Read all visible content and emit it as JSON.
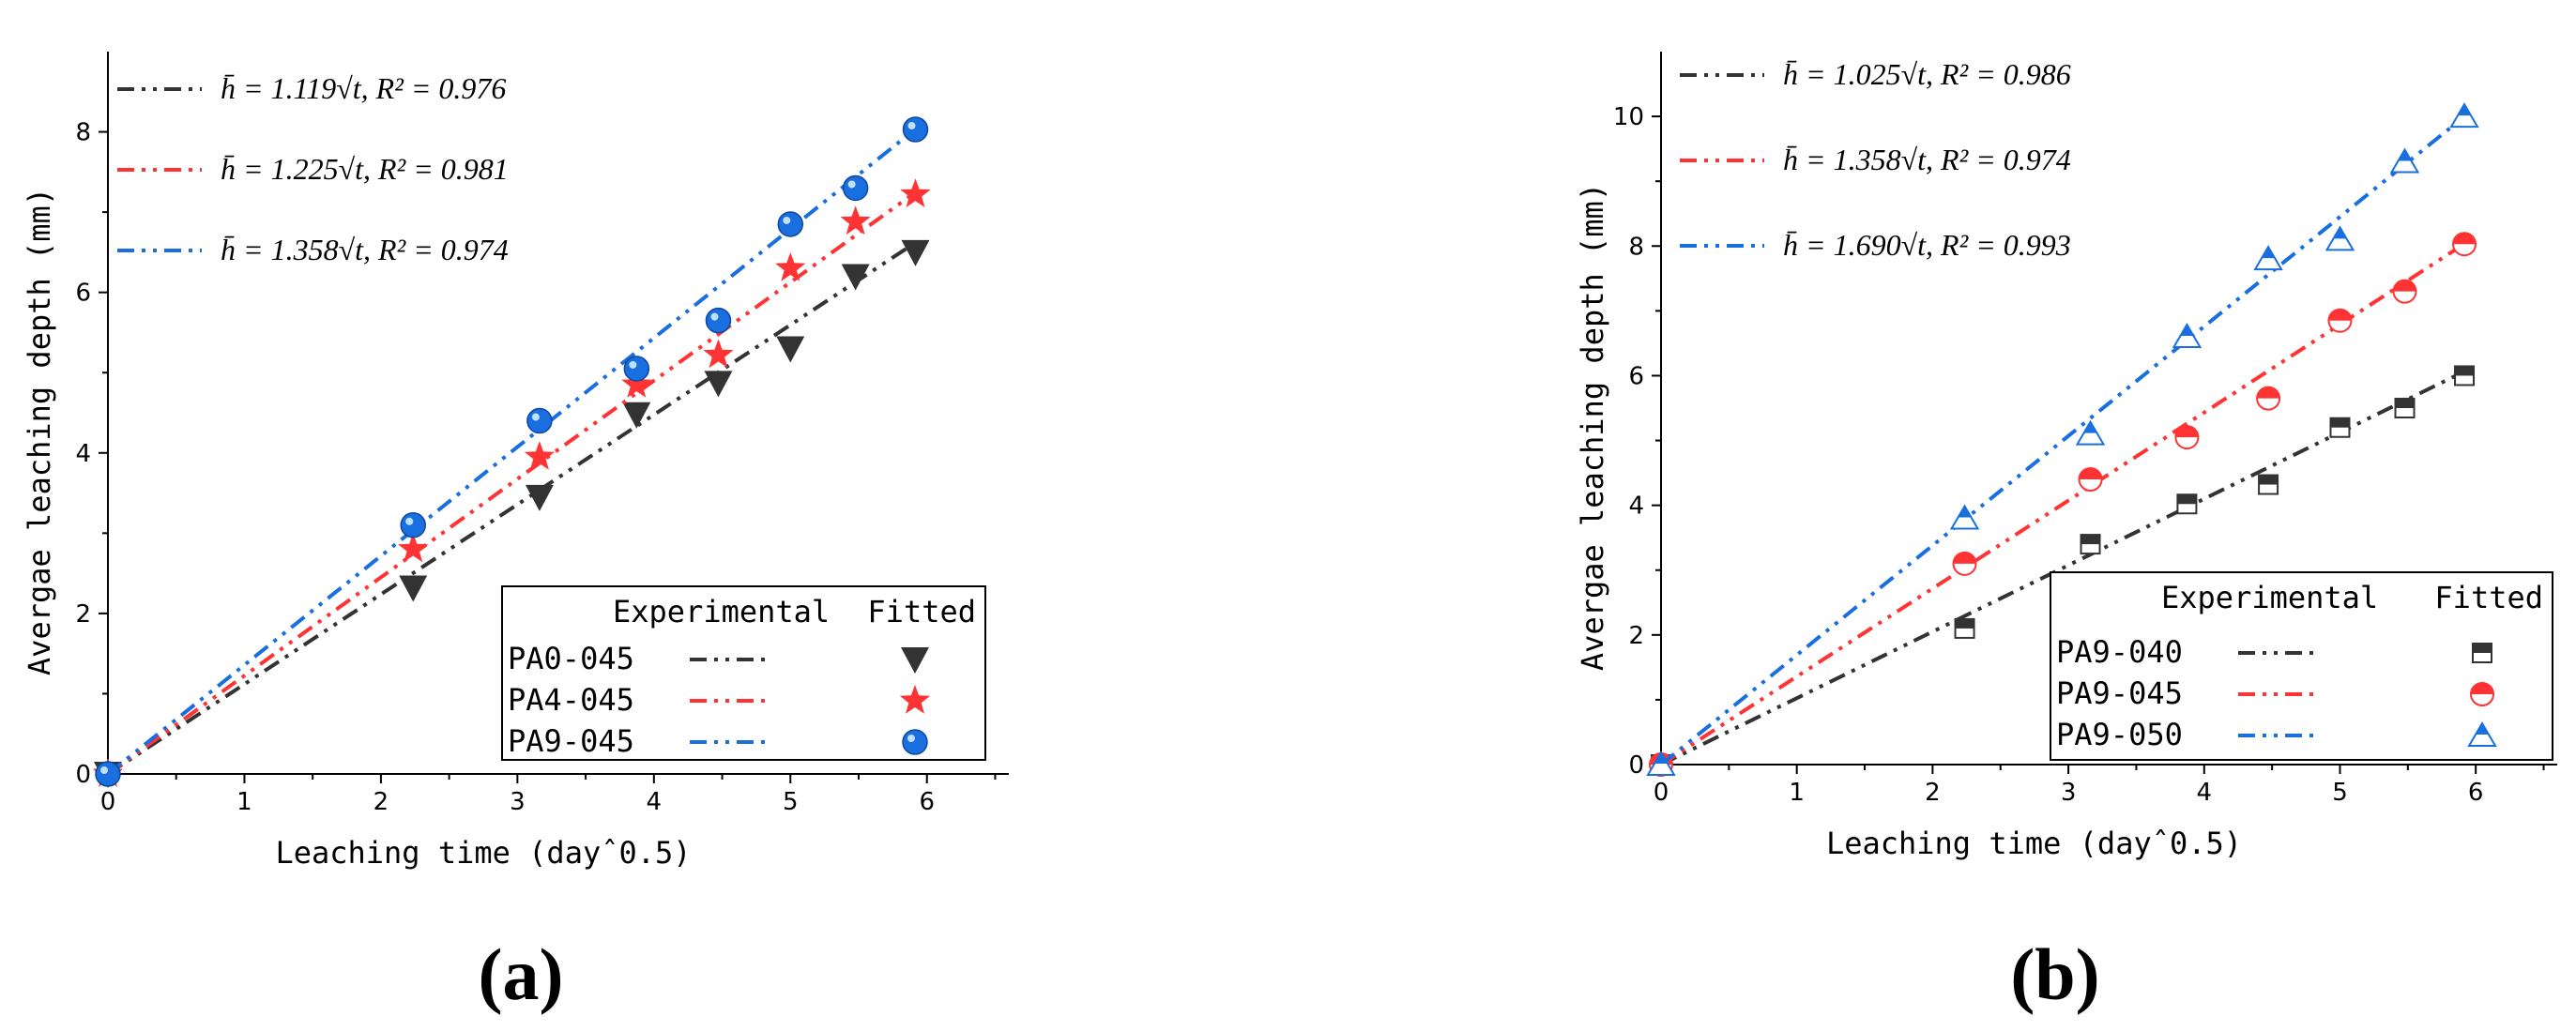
{
  "chart_data": [
    {
      "type": "scatter",
      "panel_label": "(a)",
      "xlabel": "Leaching time (dayˆ0.5)",
      "ylabel": "Avergae leaching depth (mm)",
      "xlim": [
        0,
        6.6
      ],
      "ylim": [
        0,
        9
      ],
      "xticks": [
        0,
        1,
        2,
        3,
        4,
        5,
        6
      ],
      "yticks": [
        0,
        2,
        4,
        6,
        8
      ],
      "legend_header": {
        "experimental": "Experimental",
        "fitted": "Fitted"
      },
      "series": [
        {
          "name": "PA0-045",
          "color": "#333333",
          "marker": "triangle-down",
          "slope": 1.119,
          "equation": "h̄ = 1.119√t,  R² = 0.976",
          "x": [
            0,
            2.236,
            3.162,
            3.873,
            4.472,
            5.0,
            5.477,
            5.916
          ],
          "y": [
            0,
            2.32,
            3.45,
            4.48,
            4.87,
            5.3,
            6.2,
            6.5
          ]
        },
        {
          "name": "PA4-045",
          "color": "#ff3333",
          "marker": "star",
          "slope": 1.225,
          "equation": "h̄ = 1.225√t,  R² = 0.981",
          "x": [
            0,
            2.236,
            3.162,
            3.873,
            4.472,
            5.0,
            5.477,
            5.916
          ],
          "y": [
            0,
            2.8,
            3.95,
            4.85,
            5.22,
            6.3,
            6.88,
            7.22
          ]
        },
        {
          "name": "PA9-045",
          "color": "#1a6fe0",
          "marker": "sphere",
          "slope": 1.358,
          "equation": "h̄ = 1.358√t,  R² = 0.974",
          "x": [
            0,
            2.236,
            3.162,
            3.873,
            4.472,
            5.0,
            5.477,
            5.916
          ],
          "y": [
            0,
            3.1,
            4.4,
            5.05,
            5.65,
            6.85,
            7.3,
            8.03
          ]
        }
      ]
    },
    {
      "type": "scatter",
      "panel_label": "(b)",
      "xlabel": "Leaching time (dayˆ0.5)",
      "ylabel": "Avergae leaching depth (mm)",
      "xlim": [
        0,
        6.6
      ],
      "ylim": [
        0,
        11
      ],
      "xticks": [
        0,
        1,
        2,
        3,
        4,
        5,
        6
      ],
      "yticks": [
        0,
        2,
        4,
        6,
        8,
        10
      ],
      "legend_header": {
        "experimental": "Experimental",
        "fitted": "Fitted"
      },
      "series": [
        {
          "name": "PA9-040",
          "color": "#333333",
          "marker": "half-square",
          "slope": 1.025,
          "equation": "h̄ = 1.025√t,  R² = 0.986",
          "x": [
            0,
            2.236,
            3.162,
            3.873,
            4.472,
            5.0,
            5.477,
            5.916
          ],
          "y": [
            0,
            2.1,
            3.4,
            4.02,
            4.32,
            5.2,
            5.5,
            6.0
          ]
        },
        {
          "name": "PA9-045",
          "color": "#ff3333",
          "marker": "half-circle",
          "slope": 1.358,
          "equation": "h̄ = 1.358√t,  R² = 0.974",
          "x": [
            0,
            2.236,
            3.162,
            3.873,
            4.472,
            5.0,
            5.477,
            5.916
          ],
          "y": [
            0,
            3.1,
            4.4,
            5.05,
            5.65,
            6.85,
            7.3,
            8.03
          ]
        },
        {
          "name": "PA9-050",
          "color": "#1a6fe0",
          "marker": "half-triangle",
          "slope": 1.69,
          "equation": "h̄ = 1.690√t,  R² = 0.993",
          "x": [
            0,
            2.236,
            3.162,
            3.873,
            4.472,
            5.0,
            5.477,
            5.916
          ],
          "y": [
            0,
            3.8,
            5.1,
            6.6,
            7.8,
            8.1,
            9.3,
            10.0
          ]
        }
      ]
    }
  ]
}
